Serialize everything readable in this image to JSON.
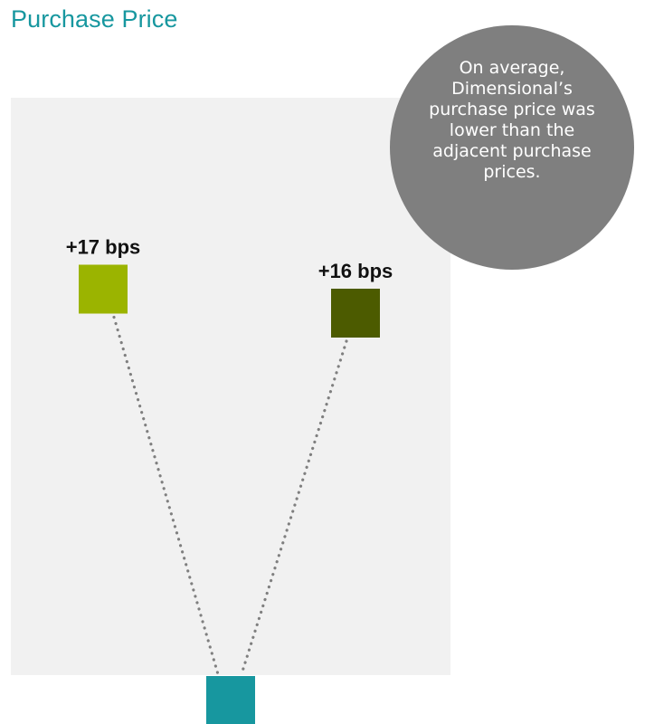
{
  "title": "Purchase Price",
  "callout": {
    "text": "On average, Dimensional’s purchase price was lower than the adjacent purchase prices."
  },
  "colors": {
    "title": "#17979f",
    "panel": "#f1f1f1",
    "callout": "#7f7f7f",
    "connector": "#7f7f7f"
  },
  "chart_data": {
    "type": "scatter",
    "unit": "bps",
    "points": [
      {
        "label": "+17 bps",
        "value": 17,
        "color": "#9bb400"
      },
      {
        "label": "+16 bps",
        "value": 16,
        "color": "#4c5b00"
      },
      {
        "label": "",
        "value": 0,
        "color": "#17979f"
      }
    ]
  }
}
